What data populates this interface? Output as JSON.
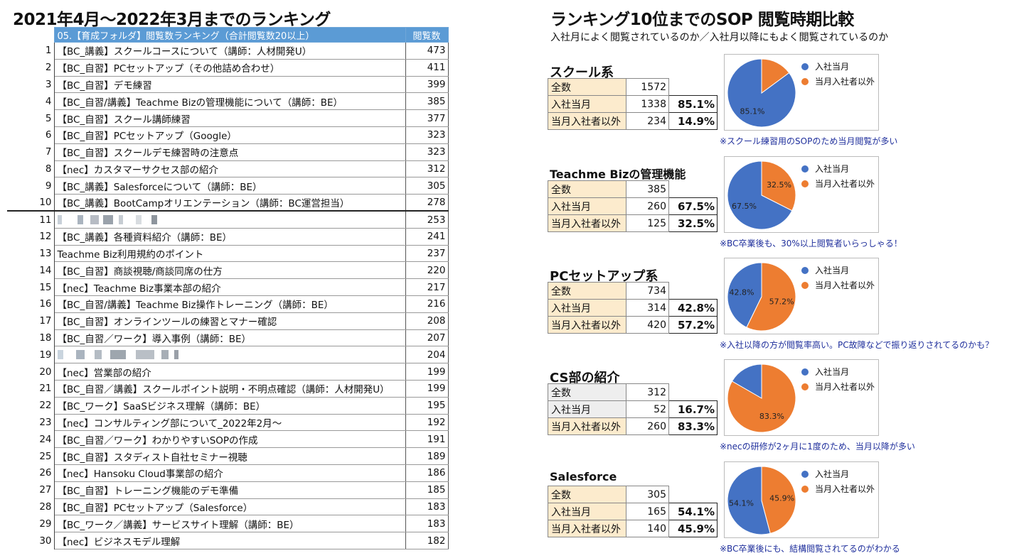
{
  "main_title": "2021年4月〜2022年3月までのランキング",
  "ranking": {
    "header": {
      "title": "05.【育成フォルダ】閲覧数ランキング（合計閲覧数20以上）",
      "count_label": "閲覧数"
    },
    "rows": [
      {
        "no": "1",
        "name": "【BC_講義】スクールコースについて（講師：人材開発U）",
        "count": "473"
      },
      {
        "no": "2",
        "name": "【BC_自習】PCセットアップ（その他詰め合わせ）",
        "count": "411"
      },
      {
        "no": "3",
        "name": "【BC_自習】デモ練習",
        "count": "399"
      },
      {
        "no": "4",
        "name": "【BC_自習/講義】Teachme Bizの管理機能について（講師：BE）",
        "count": "385"
      },
      {
        "no": "5",
        "name": "【BC_自習】スクール講師練習",
        "count": "377"
      },
      {
        "no": "6",
        "name": "【BC_自習】PCセットアップ（Google）",
        "count": "323"
      },
      {
        "no": "7",
        "name": "【BC_自習】スクールデモ練習時の注意点",
        "count": "323"
      },
      {
        "no": "8",
        "name": "【nec】カスタマーサクセス部の紹介",
        "count": "312"
      },
      {
        "no": "9",
        "name": "【BC_講義】Salesforceについて（講師：BE）",
        "count": "305"
      },
      {
        "no": "10",
        "name": "【BC_講義】BootCampオリエンテーション（講師：BC運営担当）",
        "count": "278"
      },
      {
        "no": "11",
        "name": "",
        "count": "253",
        "redacted": true
      },
      {
        "no": "12",
        "name": "【BC_講義】各種資料紹介（講師：BE）",
        "count": "241"
      },
      {
        "no": "13",
        "name": "Teachme Biz利用規約のポイント",
        "count": "237"
      },
      {
        "no": "14",
        "name": "【BC_自習】商談視聴/商談同席の仕方",
        "count": "220"
      },
      {
        "no": "15",
        "name": "【nec】Teachme Biz事業本部の紹介",
        "count": "217"
      },
      {
        "no": "16",
        "name": "【BC_自習/講義】Teachme Biz操作トレーニング（講師：BE）",
        "count": "216"
      },
      {
        "no": "17",
        "name": "【BC_自習】オンラインツールの練習とマナー確認",
        "count": "208"
      },
      {
        "no": "18",
        "name": "【BC_自習／ワーク】導入事例（講師：BE）",
        "count": "207"
      },
      {
        "no": "19",
        "name": "",
        "count": "204",
        "redacted": true
      },
      {
        "no": "20",
        "name": "【nec】営業部の紹介",
        "count": "199"
      },
      {
        "no": "21",
        "name": "【BC_自習／講義】スクールポイント説明・不明点確認（講師：人材開発U）",
        "count": "199"
      },
      {
        "no": "22",
        "name": "【BC_ワーク】SaaSビジネス理解（講師：BE）",
        "count": "195"
      },
      {
        "no": "23",
        "name": "【nec】コンサルティング部について_2022年2月〜",
        "count": "192"
      },
      {
        "no": "24",
        "name": "【BC_自習／ワーク】わかりやすいSOPの作成",
        "count": "191"
      },
      {
        "no": "25",
        "name": "【BC_自習】スタディスト自社セミナー視聴",
        "count": "189"
      },
      {
        "no": "26",
        "name": "【nec】Hansoku Cloud事業部の紹介",
        "count": "186"
      },
      {
        "no": "27",
        "name": "【BC_自習】トレーニング機能のデモ準備",
        "count": "185"
      },
      {
        "no": "28",
        "name": "【BC_自習】PCセットアップ（Salesforce）",
        "count": "183"
      },
      {
        "no": "29",
        "name": "【BC_ワーク／講義】サービスサイト理解（講師：BE）",
        "count": "183"
      },
      {
        "no": "30",
        "name": "【nec】ビジネスモデル理解",
        "count": "182"
      }
    ]
  },
  "comparison": {
    "title": "ランキング10位までのSOP 閲覧時期比較",
    "subtitle": "入社月によく閲覧されているのか／入社月以降にもよく閲覧されているのか",
    "labels": {
      "total": "全数",
      "current_month": "入社当月",
      "other": "当月入社者以外"
    },
    "legend": {
      "current_month": "入社当月",
      "other": "当月入社者以外"
    },
    "colors": {
      "current_month": "#4472c4",
      "other": "#ed7d31"
    }
  },
  "chart_data": [
    {
      "type": "pie",
      "title": "スクール系",
      "total": "1572",
      "categories": [
        "入社当月",
        "当月入社者以外"
      ],
      "values": [
        1338,
        234
      ],
      "counts": [
        "1338",
        "234"
      ],
      "percents": [
        "85.1%",
        "14.9%"
      ],
      "slice_labels": [
        "85.1%",
        ""
      ],
      "note": "※スクール練習用のSOPのため当月閲覧が多い"
    },
    {
      "type": "pie",
      "title": "Teachme Bizの管理機能",
      "total": "385",
      "categories": [
        "入社当月",
        "当月入社者以外"
      ],
      "values": [
        260,
        125
      ],
      "counts": [
        "260",
        "125"
      ],
      "percents": [
        "67.5%",
        "32.5%"
      ],
      "slice_labels": [
        "67.5%",
        "32.5%"
      ],
      "note": "※BC卒業後も、30%以上閲覧者いらっしゃる！"
    },
    {
      "type": "pie",
      "title": "PCセットアップ系",
      "total": "734",
      "categories": [
        "入社当月",
        "当月入社者以外"
      ],
      "values": [
        314,
        420
      ],
      "counts": [
        "314",
        "420"
      ],
      "percents": [
        "42.8%",
        "57.2%"
      ],
      "slice_labels": [
        "42.8%",
        "57.2%"
      ],
      "note": "※入社以降の方が閲覧率高い。PC故障などで振り返りされてるのかも？"
    },
    {
      "type": "pie",
      "title": "CS部の紹介",
      "total": "312",
      "categories": [
        "入社当月",
        "当月入社者以外"
      ],
      "values": [
        52,
        260
      ],
      "counts": [
        "52",
        "260"
      ],
      "percents": [
        "16.7%",
        "83.3%"
      ],
      "slice_labels": [
        "",
        "83.3%"
      ],
      "note": "※necの研修が2ヶ月に1度のため、当月以降が多い"
    },
    {
      "type": "pie",
      "title": "Salesforce",
      "total": "305",
      "categories": [
        "入社当月",
        "当月入社者以外"
      ],
      "values": [
        165,
        140
      ],
      "counts": [
        "165",
        "140"
      ],
      "percents": [
        "54.1%",
        "45.9%"
      ],
      "slice_labels": [
        "54.1%",
        "45.9%"
      ],
      "note": "※BC卒業後にも、結構閲覧されてるのがわかる"
    }
  ]
}
